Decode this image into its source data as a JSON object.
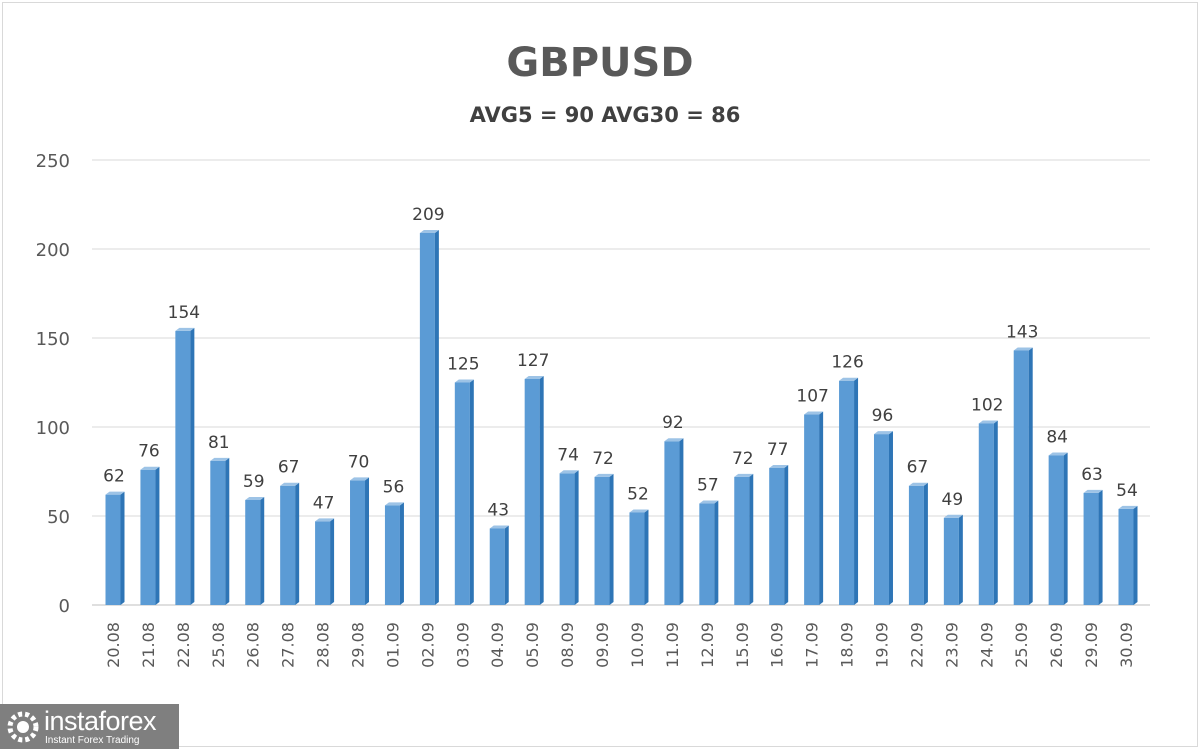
{
  "chart_data": {
    "type": "bar",
    "title": "GBPUSD",
    "subtitle": "AVG5 = 90 AVG30 = 86",
    "categories": [
      "20.08",
      "21.08",
      "22.08",
      "25.08",
      "26.08",
      "27.08",
      "28.08",
      "29.08",
      "01.09",
      "02.09",
      "03.09",
      "04.09",
      "05.09",
      "08.09",
      "09.09",
      "10.09",
      "11.09",
      "12.09",
      "15.09",
      "16.09",
      "17.09",
      "18.09",
      "19.09",
      "22.09",
      "23.09",
      "24.09",
      "25.09",
      "26.09",
      "29.09",
      "30.09"
    ],
    "values": [
      62,
      76,
      154,
      81,
      59,
      67,
      47,
      70,
      56,
      209,
      125,
      43,
      127,
      74,
      72,
      52,
      92,
      57,
      72,
      77,
      107,
      126,
      96,
      67,
      49,
      102,
      143,
      84,
      63,
      54
    ],
    "ylim": [
      0,
      250
    ],
    "yticks": [
      0,
      50,
      100,
      150,
      200,
      250
    ],
    "grid": true,
    "bar_color": "#5b9bd5",
    "data_labels": true
  },
  "watermark": {
    "name": "instaforex",
    "tagline": "Instant Forex Trading"
  }
}
